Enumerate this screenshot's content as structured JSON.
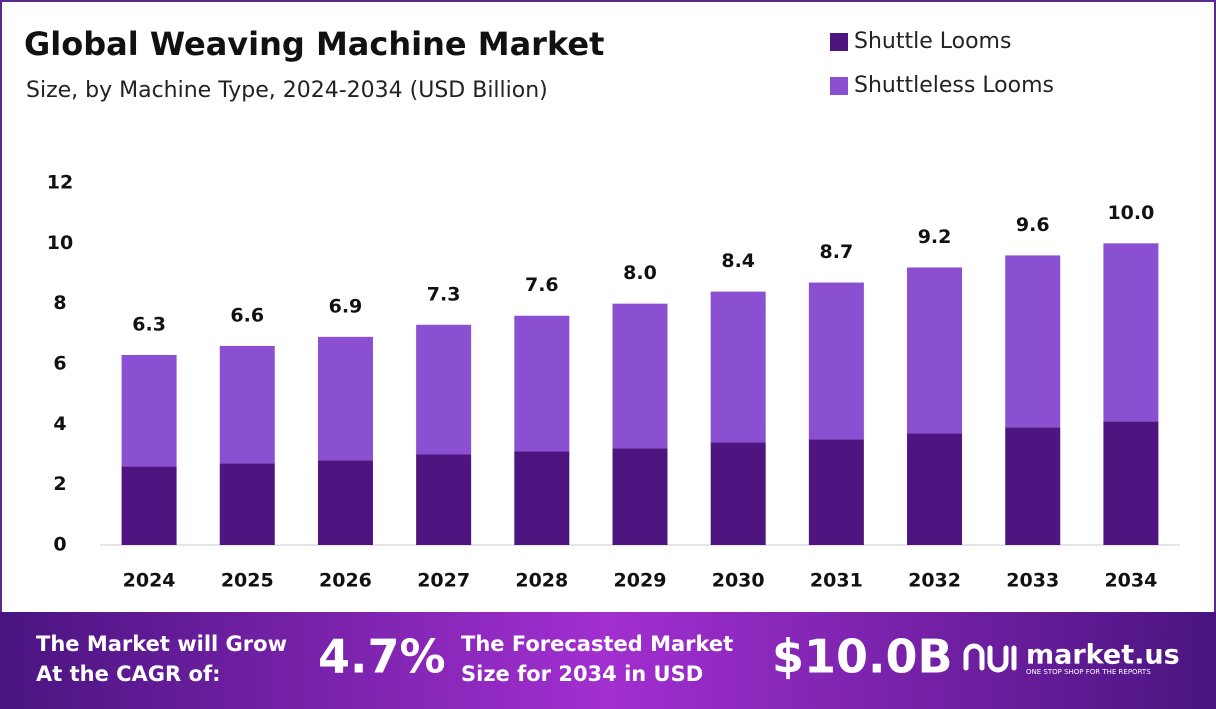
{
  "chart_data": {
    "type": "stacked-bar",
    "title": "Global Weaving Machine Market",
    "subtitle": "Size, by Machine Type, 2024-2034 (USD Billion)",
    "categories": [
      "2024",
      "2025",
      "2026",
      "2027",
      "2028",
      "2029",
      "2030",
      "2031",
      "2032",
      "2033",
      "2034"
    ],
    "series": [
      {
        "name": "Shuttle Looms",
        "color": "#4e1580",
        "values": [
          2.6,
          2.7,
          2.8,
          3.0,
          3.1,
          3.2,
          3.4,
          3.5,
          3.7,
          3.9,
          4.1
        ]
      },
      {
        "name": "Shuttleless Looms",
        "color": "#8b4fd1",
        "values": [
          3.7,
          3.9,
          4.1,
          4.3,
          4.5,
          4.8,
          5.0,
          5.2,
          5.5,
          5.7,
          5.9
        ]
      }
    ],
    "totals": [
      6.3,
      6.6,
      6.9,
      7.3,
      7.6,
      8.0,
      8.4,
      8.7,
      9.2,
      9.6,
      10.0
    ],
    "total_labels": [
      "6.3",
      "6.6",
      "6.9",
      "7.3",
      "7.6",
      "8.0",
      "8.4",
      "8.7",
      "9.2",
      "9.6",
      "10.0"
    ],
    "ylim": [
      0,
      12
    ],
    "yticks": [
      0,
      2,
      4,
      6,
      8,
      10,
      12
    ],
    "grid": false,
    "legend": "top-right"
  },
  "footer": {
    "cagr_text": "The Market will Grow At the CAGR of:",
    "cagr": "4.7%",
    "forecast_text": "The Forecasted Market Size for 2034 in USD",
    "forecast": "$10.0B",
    "brand": "market.us",
    "tagline": "ONE STOP SHOP FOR THE REPORTS"
  }
}
